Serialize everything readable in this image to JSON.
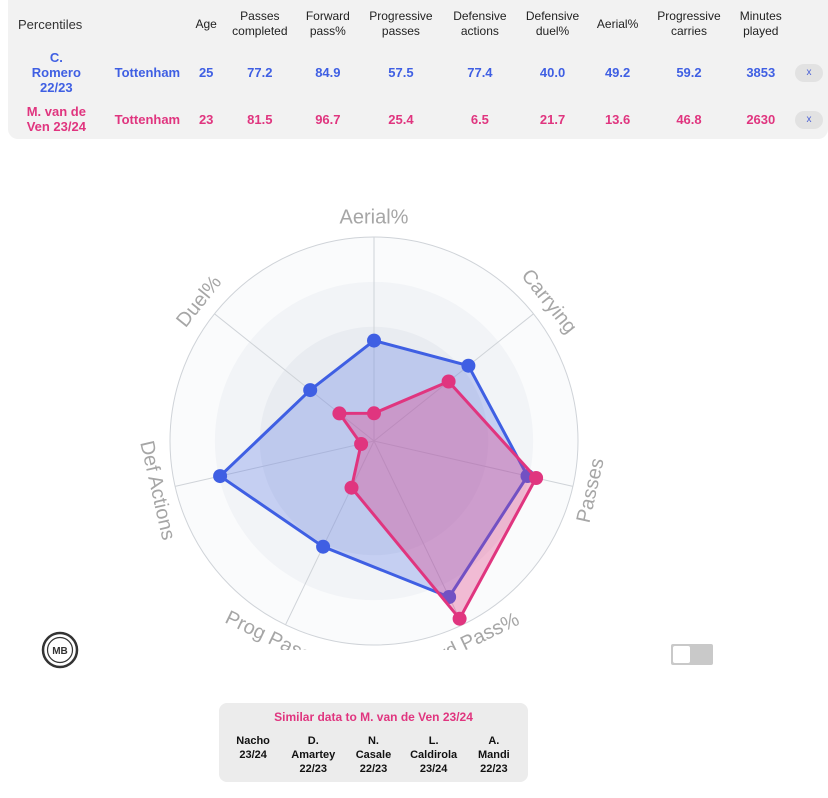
{
  "table": {
    "headers": [
      [
        "Percentiles"
      ],
      [
        ""
      ],
      [
        "Age"
      ],
      [
        "Passes",
        "completed"
      ],
      [
        "Forward",
        "pass%"
      ],
      [
        "Progressive",
        "passes"
      ],
      [
        "Defensive",
        "actions"
      ],
      [
        "Defensive",
        "duel%"
      ],
      [
        "Aerial%"
      ],
      [
        "Progressive",
        "carries"
      ],
      [
        "Minutes",
        "played"
      ],
      [
        ""
      ]
    ],
    "rows": [
      {
        "player_lines": [
          "C.",
          "Romero",
          "22/23"
        ],
        "team": "Tottenham",
        "age": "25",
        "passes_completed": "77.2",
        "forward_pass": "84.9",
        "progressive_passes": "57.5",
        "defensive_actions": "77.4",
        "defensive_duel": "40.0",
        "aerial": "49.2",
        "progressive_carries": "59.2",
        "minutes_played": "3853",
        "remove_label": "x"
      },
      {
        "player_lines": [
          "M. van de",
          "Ven 23/24"
        ],
        "team": "Tottenham",
        "age": "23",
        "passes_completed": "81.5",
        "forward_pass": "96.7",
        "progressive_passes": "25.4",
        "defensive_actions": "6.5",
        "defensive_duel": "21.7",
        "aerial": "13.6",
        "progressive_carries": "46.8",
        "minutes_played": "2630",
        "remove_label": "x"
      }
    ]
  },
  "chart_data": {
    "type": "radar",
    "axes": [
      "Aerial%",
      "Carrying",
      "Passes",
      "Fwd Pass%",
      "Prog Passes",
      "Def Actions",
      "Duel%"
    ],
    "range": [
      0,
      100
    ],
    "series": [
      {
        "name": "C. Romero 22/23",
        "color": "#3f5fe3",
        "values": [
          49.2,
          59.2,
          77.2,
          84.9,
          57.5,
          77.4,
          40.0
        ]
      },
      {
        "name": "M. van de Ven 23/24",
        "color": "#e0357f",
        "values": [
          13.6,
          46.8,
          81.5,
          96.7,
          25.4,
          6.5,
          21.7
        ]
      }
    ]
  },
  "similar": {
    "title": "Similar data to M. van de Ven 23/24",
    "items": [
      [
        "Nacho",
        "23/24"
      ],
      [
        "D.",
        "Amartey",
        "22/23"
      ],
      [
        "N.",
        "Casale",
        "22/23"
      ],
      [
        "L.",
        "Caldirola",
        "23/24"
      ],
      [
        "A.",
        "Mandi",
        "22/23"
      ]
    ]
  },
  "logo": {
    "text": "MB"
  },
  "toggle": {
    "state": "off"
  }
}
